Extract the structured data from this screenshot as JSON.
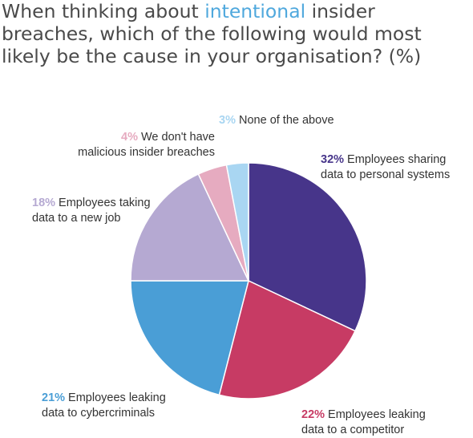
{
  "title": {
    "before": "When thinking about ",
    "highlight": "intentional",
    "after": " insider breaches, which of the following would most likely be the cause in your organisation? (%)"
  },
  "colors": {
    "title_text": "#4a4a4a",
    "title_highlight": "#4fa8dd"
  },
  "chart_data": {
    "type": "pie",
    "start": "12 o'clock, clockwise",
    "slices": [
      {
        "pct_label": "32%",
        "value": 32,
        "label_line1": "Employees sharing",
        "label_line2": "data to personal systems",
        "color": "#47358a"
      },
      {
        "pct_label": "22%",
        "value": 22,
        "label_line1": "Employees leaking",
        "label_line2": "data to a competitor",
        "color": "#c73b64"
      },
      {
        "pct_label": "21%",
        "value": 21,
        "label_line1": "Employees leaking",
        "label_line2": "data to cybercriminals",
        "color": "#4a9ed6"
      },
      {
        "pct_label": "18%",
        "value": 18,
        "label_line1": "Employees taking",
        "label_line2": "data to a new job",
        "color": "#b5a9d2"
      },
      {
        "pct_label": "4%",
        "value": 4,
        "label_line1": "We don't have",
        "label_line2": "malicious insider breaches",
        "color": "#e6abc0"
      },
      {
        "pct_label": "3%",
        "value": 3,
        "label_line1": "None of the above",
        "label_line2": "",
        "color": "#a9d6f2"
      }
    ]
  }
}
